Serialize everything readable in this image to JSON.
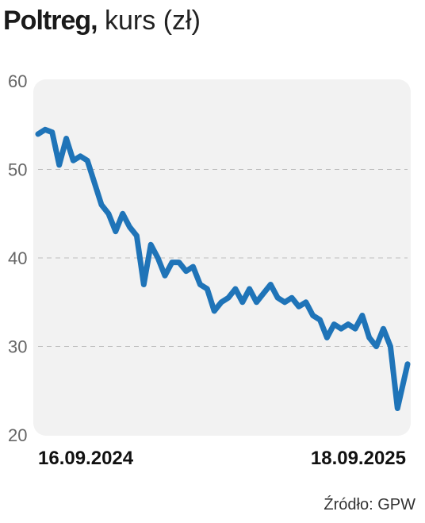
{
  "header": {
    "title_bold": "Poltreg,",
    "title_rest": " kurs (zł)"
  },
  "source": "Źródło: GPW",
  "colors": {
    "line": "#1f74b8",
    "plot_bg": "#f2f2f2",
    "grid": "#bdbdbd",
    "axis_text": "#666666"
  },
  "chart_data": {
    "type": "line",
    "title": "Poltreg, kurs (zł)",
    "xlabel": "",
    "ylabel": "",
    "x_tick_labels": [
      "16.09.2024",
      "18.09.2025"
    ],
    "y_ticks": [
      20,
      30,
      40,
      50,
      60
    ],
    "ylim": [
      20,
      60
    ],
    "xlim": [
      "2024-09-16",
      "2025-09-18"
    ],
    "grid": true,
    "legend": "none",
    "series": [
      {
        "x": [
          "2024-09-16",
          "2024-09-23",
          "2024-09-30",
          "2024-10-07",
          "2024-10-14",
          "2024-10-21",
          "2024-10-28",
          "2024-11-04",
          "2024-11-11",
          "2024-11-18",
          "2024-11-25",
          "2024-12-02",
          "2024-12-09",
          "2024-12-16",
          "2024-12-23",
          "2024-12-30",
          "2025-01-06",
          "2025-01-13",
          "2025-01-20",
          "2025-01-27",
          "2025-02-03",
          "2025-02-10",
          "2025-02-17",
          "2025-02-24",
          "2025-03-03",
          "2025-03-10",
          "2025-03-17",
          "2025-03-24",
          "2025-03-31",
          "2025-04-07",
          "2025-04-14",
          "2025-04-21",
          "2025-04-28",
          "2025-05-05",
          "2025-05-12",
          "2025-05-19",
          "2025-05-26",
          "2025-06-02",
          "2025-06-09",
          "2025-06-16",
          "2025-06-23",
          "2025-06-30",
          "2025-07-07",
          "2025-07-14",
          "2025-07-21",
          "2025-07-28",
          "2025-08-04",
          "2025-08-11",
          "2025-08-18",
          "2025-08-25",
          "2025-09-01",
          "2025-09-08",
          "2025-09-18"
        ],
        "values": [
          54.0,
          54.5,
          54.2,
          50.5,
          53.5,
          51.0,
          51.5,
          51.0,
          48.5,
          46.0,
          45.0,
          43.0,
          45.0,
          43.5,
          42.5,
          37.0,
          41.5,
          40.0,
          38.0,
          39.5,
          39.5,
          38.5,
          39.0,
          37.0,
          36.5,
          34.0,
          35.0,
          35.5,
          36.5,
          35.0,
          36.5,
          35.0,
          36.0,
          37.0,
          35.5,
          35.0,
          35.5,
          34.5,
          35.0,
          33.5,
          33.0,
          31.0,
          32.5,
          32.0,
          32.5,
          32.0,
          33.5,
          31.0,
          30.0,
          32.0,
          30.0,
          23.0,
          28.0
        ]
      }
    ]
  }
}
